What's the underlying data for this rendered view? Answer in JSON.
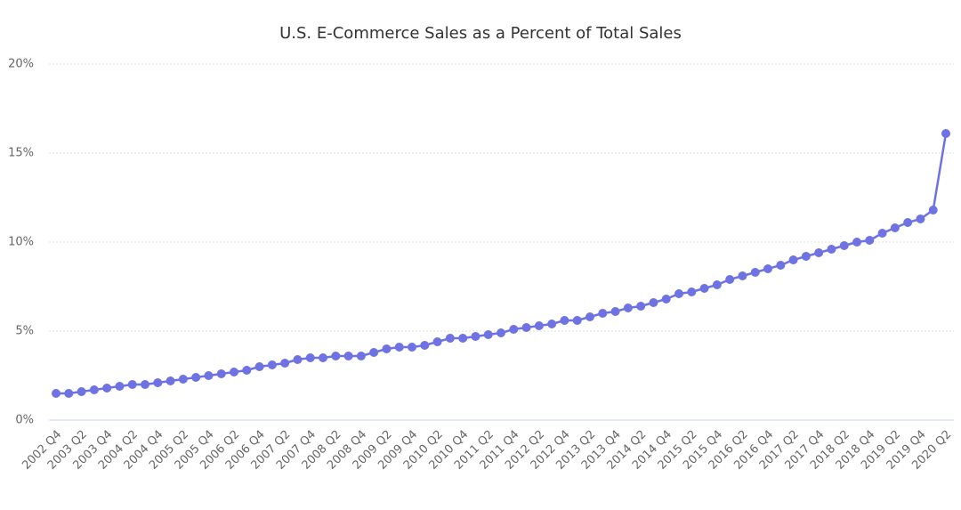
{
  "chart_data": {
    "type": "line",
    "title": "U.S. E-Commerce Sales as a Percent of Total Sales",
    "categories": [
      "2002 Q4",
      null,
      "2003 Q2",
      null,
      "2003 Q4",
      null,
      "2004 Q2",
      null,
      "2004 Q4",
      null,
      "2005 Q2",
      null,
      "2005 Q4",
      null,
      "2006 Q2",
      null,
      "2006 Q4",
      null,
      "2007 Q2",
      null,
      "2007 Q4",
      null,
      "2008 Q2",
      null,
      "2008 Q4",
      null,
      "2009 Q2",
      null,
      "2009 Q4",
      null,
      "2010 Q2",
      null,
      "2010 Q4",
      null,
      "2011 Q2",
      null,
      "2011 Q4",
      null,
      "2012 Q2",
      null,
      "2012 Q4",
      null,
      "2013 Q2",
      null,
      "2013 Q4",
      null,
      "2014 Q2",
      null,
      "2014 Q4",
      null,
      "2015 Q2",
      null,
      "2015 Q4",
      null,
      "2016 Q2",
      null,
      "2016 Q4",
      null,
      "2017 Q2",
      null,
      "2017 Q4",
      null,
      "2018 Q2",
      null,
      "2018 Q4",
      null,
      "2019 Q2",
      null,
      "2019 Q4",
      null,
      "2020 Q2"
    ],
    "values": [
      1.5,
      1.5,
      1.6,
      1.7,
      1.8,
      1.9,
      2.0,
      2.0,
      2.1,
      2.2,
      2.3,
      2.4,
      2.5,
      2.6,
      2.7,
      2.8,
      3.0,
      3.1,
      3.2,
      3.4,
      3.5,
      3.5,
      3.6,
      3.6,
      3.6,
      3.8,
      4.0,
      4.1,
      4.1,
      4.2,
      4.4,
      4.6,
      4.6,
      4.7,
      4.8,
      4.9,
      5.1,
      5.2,
      5.3,
      5.4,
      5.6,
      5.6,
      5.8,
      6.0,
      6.1,
      6.3,
      6.4,
      6.6,
      6.8,
      7.1,
      7.2,
      7.4,
      7.6,
      7.9,
      8.1,
      8.3,
      8.5,
      8.7,
      9.0,
      9.2,
      9.4,
      9.6,
      9.8,
      10.0,
      10.1,
      10.5,
      10.8,
      11.1,
      11.3,
      11.8,
      16.1
    ],
    "color": "#6e72e3",
    "ylim": [
      0,
      20
    ],
    "yticks": [
      {
        "value": 0,
        "label": "0%"
      },
      {
        "value": 5,
        "label": "5%"
      },
      {
        "value": 10,
        "label": "10%"
      },
      {
        "value": 15,
        "label": "15%"
      },
      {
        "value": 20,
        "label": "20%"
      }
    ],
    "grid": true
  }
}
